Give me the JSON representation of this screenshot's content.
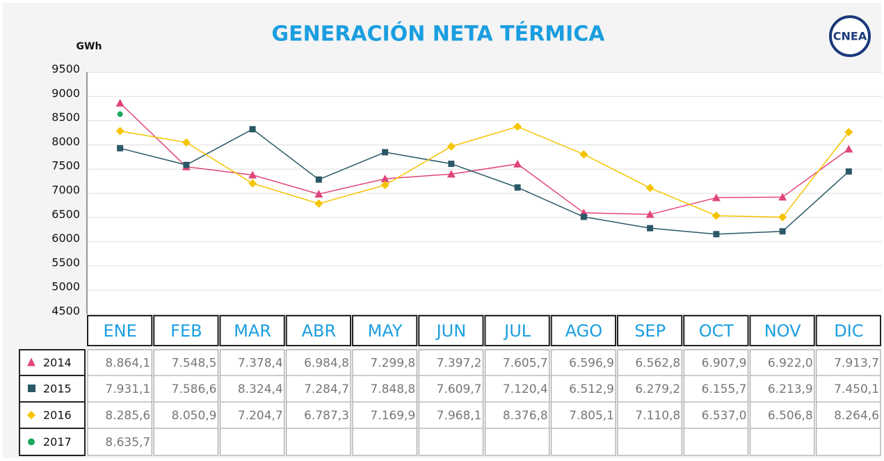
{
  "chart_data": {
    "type": "line",
    "title": "GENERACIÓN NETA TÉRMICA",
    "logo": "CNEA",
    "y_label": "GWh",
    "categories": [
      "ENE",
      "FEB",
      "MAR",
      "ABR",
      "MAY",
      "JUN",
      "JUL",
      "AGO",
      "SEP",
      "OCT",
      "NOV",
      "DIC"
    ],
    "ylim": [
      4500,
      9500
    ],
    "yticks": [
      4500,
      5000,
      5500,
      6000,
      6500,
      7000,
      7500,
      8000,
      8500,
      9000,
      9500
    ],
    "grid": true,
    "series": [
      {
        "name": "2014",
        "color": "#e0457b",
        "marker": "triangle",
        "values": [
          8864.1,
          7548.5,
          7378.4,
          6984.8,
          7299.8,
          7397.2,
          7605.7,
          6596.9,
          6562.8,
          6907.9,
          6922.0,
          7913.7
        ],
        "value_labels": [
          "8.864,1",
          "7.548,5",
          "7.378,4",
          "6.984,8",
          "7.299,8",
          "7.397,2",
          "7.605,7",
          "6.596,9",
          "6.562,8",
          "6.907,9",
          "6.922,0",
          "7.913,7"
        ]
      },
      {
        "name": "2015",
        "color": "#2a5866",
        "marker": "square",
        "values": [
          7931.1,
          7586.6,
          8324.4,
          7284.7,
          7848.8,
          7609.7,
          7120.4,
          6512.9,
          6279.2,
          6155.7,
          6213.9,
          7450.1
        ],
        "value_labels": [
          "7.931,1",
          "7.586,6",
          "8.324,4",
          "7.284,7",
          "7.848,8",
          "7.609,7",
          "7.120,4",
          "6.512,9",
          "6.279,2",
          "6.155,7",
          "6.213,9",
          "7.450,1"
        ]
      },
      {
        "name": "2016",
        "color": "#f5c400",
        "marker": "diamond",
        "values": [
          8285.6,
          8050.9,
          7204.7,
          6787.3,
          7169.9,
          7968.1,
          8376.8,
          7805.1,
          7110.8,
          6537.0,
          6506.8,
          8264.6
        ],
        "value_labels": [
          "8.285,6",
          "8.050,9",
          "7.204,7",
          "6.787,3",
          "7.169,9",
          "7.968,1",
          "8.376,8",
          "7.805,1",
          "7.110,8",
          "6.537,0",
          "6.506,8",
          "8.264,6"
        ]
      },
      {
        "name": "2017",
        "color": "#1aa85a",
        "marker": "circle",
        "values": [
          8635.7,
          null,
          null,
          null,
          null,
          null,
          null,
          null,
          null,
          null,
          null,
          null
        ],
        "value_labels": [
          "8.635,7",
          null,
          null,
          null,
          null,
          null,
          null,
          null,
          null,
          null,
          null,
          null
        ]
      }
    ]
  }
}
